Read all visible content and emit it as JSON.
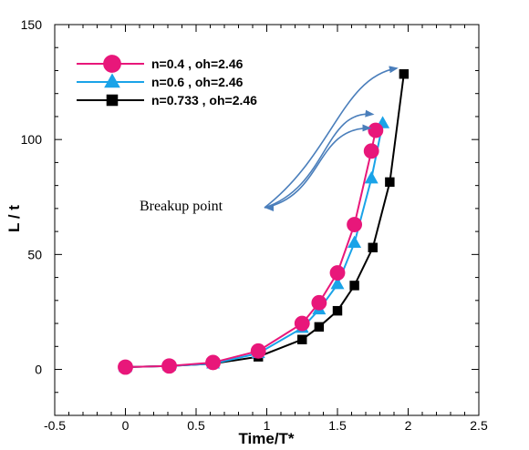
{
  "chart_data": {
    "type": "line",
    "xlabel": "Time/T*",
    "ylabel": "L / t",
    "xlim": [
      -0.5,
      2.5
    ],
    "ylim": [
      -20,
      150
    ],
    "xticks": [
      -0.5,
      0,
      0.5,
      1,
      1.5,
      2,
      2.5
    ],
    "xtick_labels": [
      "-0.5",
      "0",
      "0.5",
      "1",
      "1.5",
      "2",
      "2.5"
    ],
    "yticks": [
      0,
      50,
      100,
      150
    ],
    "ytick_labels": [
      "0",
      "50",
      "100",
      "150"
    ],
    "grid": false,
    "legend_position": "top-left",
    "series": [
      {
        "name": "n=0.4 , oh=2.46",
        "color": "#e8177a",
        "marker": "circle",
        "x": [
          0,
          0.31,
          0.62,
          0.94,
          1.25,
          1.37,
          1.5,
          1.62,
          1.74,
          1.77
        ],
        "y": [
          1,
          1.5,
          3,
          8,
          20,
          29,
          42,
          63,
          95,
          104
        ]
      },
      {
        "name": "n=0.6 , oh=2.46",
        "color": "#1aa3e8",
        "marker": "triangle",
        "x": [
          0,
          0.31,
          0.62,
          0.94,
          1.25,
          1.37,
          1.5,
          1.62,
          1.74,
          1.82
        ],
        "y": [
          1,
          1.5,
          2.5,
          7,
          18,
          26,
          37,
          55,
          83,
          107
        ]
      },
      {
        "name": "n=0.733 , oh=2.46",
        "color": "#000000",
        "marker": "square",
        "x": [
          0,
          0.31,
          0.62,
          0.94,
          1.25,
          1.37,
          1.5,
          1.62,
          1.75,
          1.87,
          1.97
        ],
        "y": [
          1,
          1.5,
          2.5,
          5.5,
          13,
          18.5,
          25.5,
          36.5,
          53,
          81.5,
          128.5
        ]
      }
    ],
    "annotations": [
      {
        "text": "Breakup point",
        "arrow_color": "#4a7ebb",
        "targets": [
          [
            1.78,
            105
          ],
          [
            1.8,
            111
          ],
          [
            1.97,
            131
          ]
        ]
      }
    ]
  }
}
